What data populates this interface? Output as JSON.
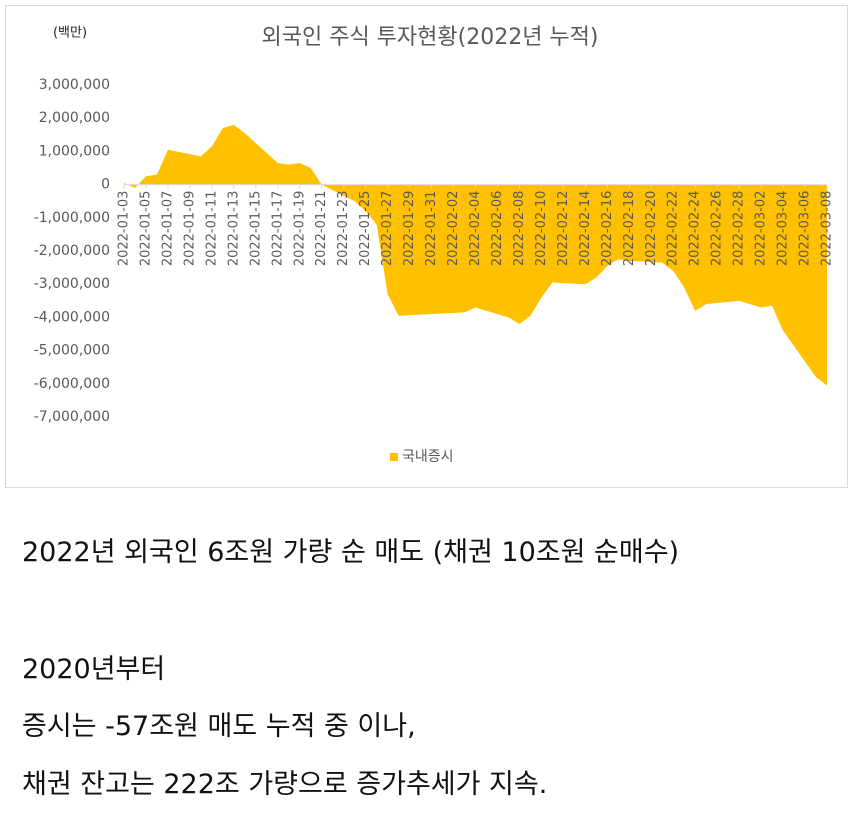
{
  "chart_data": {
    "type": "area",
    "title": "외국인 주식 투자현황(2022년 누적)",
    "unit_label": "(백만)",
    "x": [
      "2022-01-03",
      "2022-01-04",
      "2022-01-05",
      "2022-01-06",
      "2022-01-07",
      "2022-01-10",
      "2022-01-11",
      "2022-01-12",
      "2022-01-13",
      "2022-01-14",
      "2022-01-17",
      "2022-01-18",
      "2022-01-19",
      "2022-01-20",
      "2022-01-21",
      "2022-01-24",
      "2022-01-25",
      "2022-01-26",
      "2022-01-27",
      "2022-01-28",
      "2022-02-03",
      "2022-02-04",
      "2022-02-07",
      "2022-02-08",
      "2022-02-09",
      "2022-02-10",
      "2022-02-11",
      "2022-02-14",
      "2022-02-15",
      "2022-02-16",
      "2022-02-17",
      "2022-02-18",
      "2022-02-21",
      "2022-02-22",
      "2022-02-23",
      "2022-02-24",
      "2022-02-25",
      "2022-02-28",
      "2022-03-02",
      "2022-03-03",
      "2022-03-04",
      "2022-03-07",
      "2022-03-08"
    ],
    "series": [
      {
        "name": "국내증시",
        "color": "#FFC000",
        "values": [
          50000,
          -100000,
          250000,
          300000,
          1050000,
          850000,
          1150000,
          1700000,
          1800000,
          1550000,
          650000,
          600000,
          650000,
          500000,
          0,
          -500000,
          -800000,
          -1200000,
          -3300000,
          -3950000,
          -3850000,
          -3700000,
          -4000000,
          -4200000,
          -3950000,
          -3400000,
          -2950000,
          -3000000,
          -2800000,
          -2450000,
          -2250000,
          -2300000,
          -2350000,
          -2600000,
          -3100000,
          -3800000,
          -3600000,
          -3500000,
          -3700000,
          -3650000,
          -4400000,
          -5800000,
          -6050000
        ]
      }
    ],
    "xlim": [
      "2022-01-03",
      "2022-03-08"
    ],
    "xticks": [
      "2022-01-03",
      "2022-01-05",
      "2022-01-07",
      "2022-01-09",
      "2022-01-11",
      "2022-01-13",
      "2022-01-15",
      "2022-01-17",
      "2022-01-19",
      "2022-01-21",
      "2022-01-23",
      "2022-01-25",
      "2022-01-27",
      "2022-01-29",
      "2022-01-31",
      "2022-02-02",
      "2022-02-04",
      "2022-02-06",
      "2022-02-08",
      "2022-02-10",
      "2022-02-12",
      "2022-02-14",
      "2022-02-16",
      "2022-02-18",
      "2022-02-20",
      "2022-02-22",
      "2022-02-24",
      "2022-02-26",
      "2022-02-28",
      "2022-03-02",
      "2022-03-04",
      "2022-03-06",
      "2022-03-08"
    ],
    "ylim": [
      -7000000,
      3000000
    ],
    "yticks": [
      {
        "value": 3000000,
        "label": "3,000,000"
      },
      {
        "value": 2000000,
        "label": "2,000,000"
      },
      {
        "value": 1000000,
        "label": "1,000,000"
      },
      0,
      {
        "value": -1000000,
        "label": "-1,000,000"
      },
      {
        "value": -2000000,
        "label": "-2,000,000"
      },
      {
        "value": -3000000,
        "label": "-3,000,000"
      },
      {
        "value": -4000000,
        "label": "-4,000,000"
      },
      {
        "value": -5000000,
        "label": "-5,000,000"
      },
      {
        "value": -6000000,
        "label": "-6,000,000"
      },
      {
        "value": -7000000,
        "label": "-7,000,000"
      }
    ],
    "legend": "bottom",
    "grid": false
  },
  "headline": "2022년 외국인 6조원 가량 순 매도 (채권 10조원 순매수)",
  "paragraphs": [
    "2020년부터",
    "증시는 -57조원 매도 누적 중 이나,",
    "채권 잔고는 222조 가량으로 증가추세가 지속."
  ]
}
